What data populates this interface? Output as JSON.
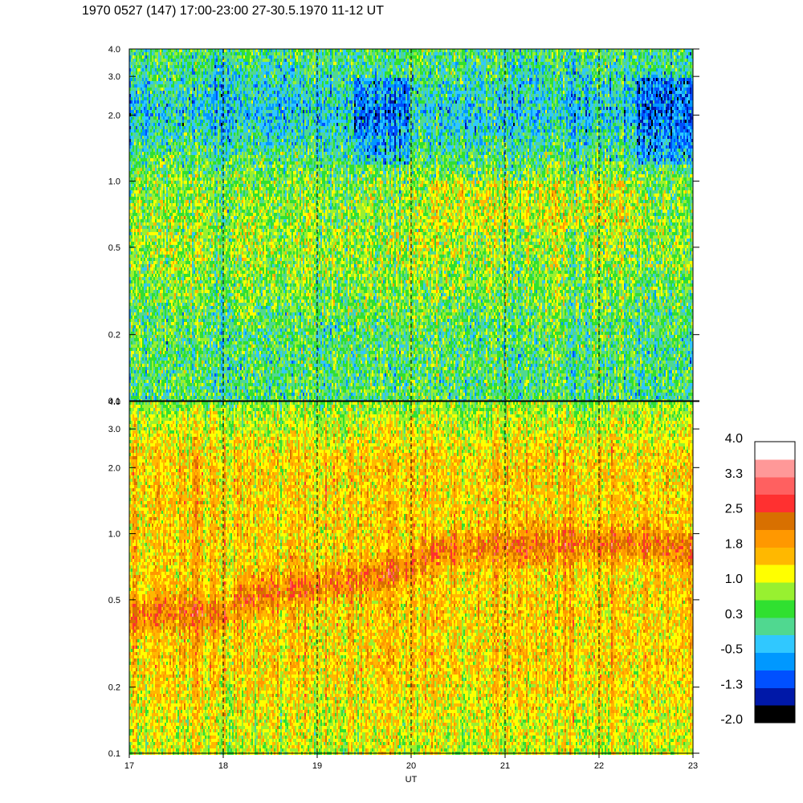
{
  "title": "1970 0527 (147) 17:00-23:00 27-30.5.1970  11-12 UT",
  "chart_data": {
    "type": "heatmap",
    "title": "1970 0527 (147) 17:00-23:00 27-30.5.1970  11-12 UT",
    "xlabel": "UT",
    "xlim": [
      17,
      23
    ],
    "x_ticks": [
      17,
      18,
      19,
      20,
      21,
      22,
      23
    ],
    "x_tick_labels": [
      "17",
      "18",
      "19",
      "20",
      "21",
      "22",
      "23"
    ],
    "dashed_gridlines_x": [
      18,
      19,
      20,
      21,
      22
    ],
    "panels": [
      {
        "name": "upper",
        "ylim": [
          0.1,
          4.0
        ],
        "log_scale_y": true,
        "y_ticks": [
          0.1,
          0.2,
          0.5,
          1.0,
          2.0,
          3.0,
          4.0
        ],
        "y_tick_labels": [
          "0.1",
          "0.2",
          "0.5",
          "1.0",
          "2.0",
          "3.0",
          "4.0"
        ],
        "intensity_profile": [
          {
            "y": 0.1,
            "level": 0.25
          },
          {
            "y": 0.2,
            "level": 0.3
          },
          {
            "y": 0.3,
            "level": 0.55
          },
          {
            "y": 0.5,
            "level": 0.8
          },
          {
            "y": 0.8,
            "level": 0.65
          },
          {
            "y": 1.0,
            "level": 0.6
          },
          {
            "y": 1.5,
            "level": 0.0
          },
          {
            "y": 2.0,
            "level": -0.3
          },
          {
            "y": 3.0,
            "level": 0.0
          },
          {
            "y": 4.0,
            "level": 0.3
          }
        ]
      },
      {
        "name": "lower",
        "ylim": [
          0.1,
          4.0
        ],
        "log_scale_y": true,
        "y_ticks": [
          0.1,
          0.2,
          0.5,
          1.0,
          2.0,
          3.0,
          4.0
        ],
        "y_tick_labels": [
          "0.1",
          "0.2",
          "0.5",
          "1.0",
          "2.0",
          "3.0",
          "4.0"
        ],
        "ridge": [
          {
            "x": 17.0,
            "y": 0.42
          },
          {
            "x": 17.5,
            "y": 0.45
          },
          {
            "x": 18.0,
            "y": 0.42
          },
          {
            "x": 18.2,
            "y": 0.5
          },
          {
            "x": 18.5,
            "y": 0.55
          },
          {
            "x": 19.0,
            "y": 0.58
          },
          {
            "x": 19.5,
            "y": 0.62
          },
          {
            "x": 20.0,
            "y": 0.7
          },
          {
            "x": 20.3,
            "y": 0.85
          },
          {
            "x": 21.0,
            "y": 0.87
          },
          {
            "x": 22.0,
            "y": 0.9
          },
          {
            "x": 22.5,
            "y": 0.9
          },
          {
            "x": 23.0,
            "y": 0.82
          }
        ]
      }
    ],
    "colorbar": {
      "levels": [
        -2.0,
        -1.3,
        -0.5,
        0.3,
        1.0,
        1.8,
        2.5,
        3.3,
        4.0
      ],
      "tick_labels": [
        "4.0",
        "3.3",
        "2.5",
        "1.8",
        "1.0",
        "0.3",
        "-0.5",
        "-1.3",
        "-2.0"
      ],
      "colors": [
        "#000000",
        "#0018a8",
        "#0050ff",
        "#0098ff",
        "#30c8ff",
        "#50d890",
        "#30e030",
        "#98f030",
        "#ffff00",
        "#ffb800",
        "#ff9800",
        "#d87000",
        "#ff3030",
        "#ff6060",
        "#ff9898",
        "#ffffff"
      ]
    }
  }
}
